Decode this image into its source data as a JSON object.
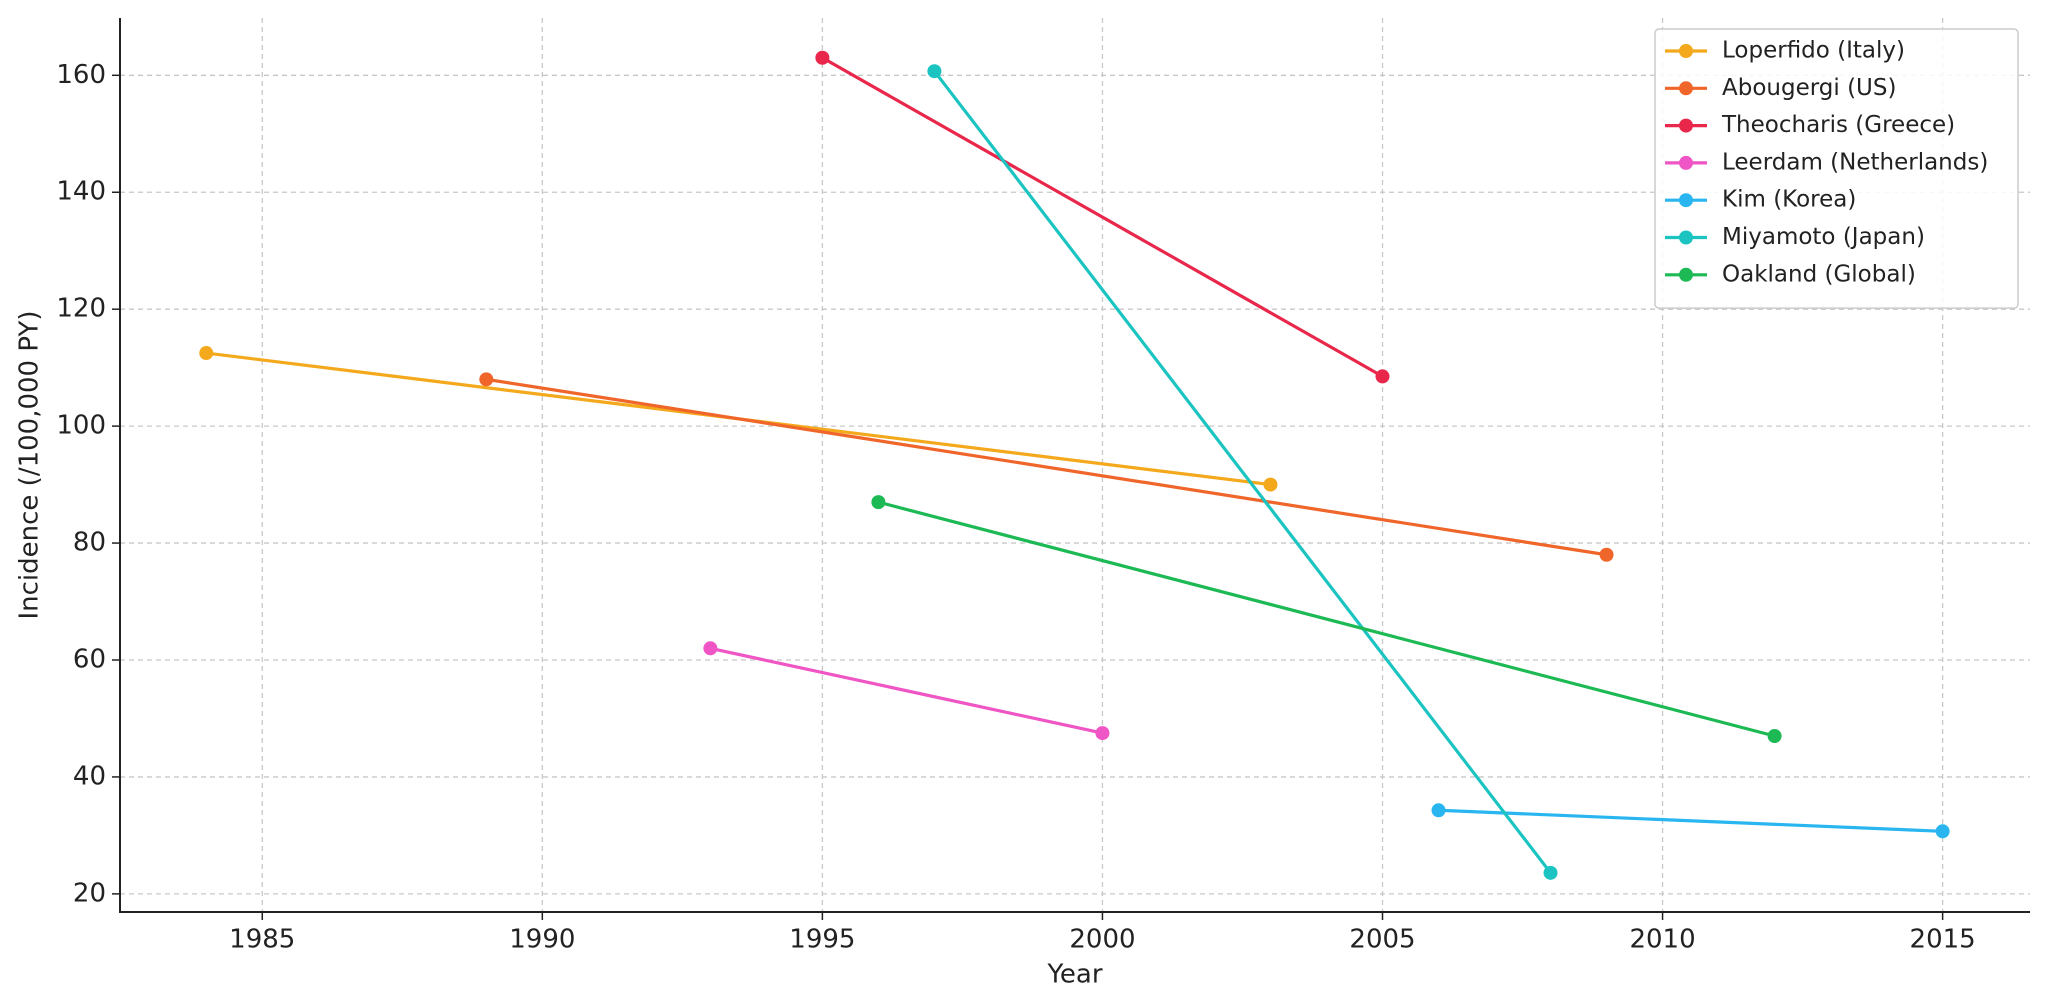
{
  "chart_data": {
    "type": "line",
    "x_label": "Year",
    "y_label": "Incidence (/100,000 PY)",
    "xlim": [
      1982.46,
      2016.56
    ],
    "xticks": [
      1985,
      1990,
      1995,
      2000,
      2005,
      2010,
      2015
    ],
    "ylim": [
      16.9,
      169.8
    ],
    "yticks": [
      20,
      40,
      60,
      80,
      100,
      120,
      140,
      160
    ],
    "grid": true,
    "legend": "upper right",
    "series": [
      {
        "name": "Loperfido (Italy)",
        "color": "#f4a81c",
        "x": [
          1984,
          2003
        ],
        "values": [
          112.5,
          90
        ]
      },
      {
        "name": "Abougergi (US)",
        "color": "#f0662a",
        "x": [
          1989,
          2009
        ],
        "values": [
          108,
          78
        ]
      },
      {
        "name": "Theocharis (Greece)",
        "color": "#e8274b",
        "x": [
          1995,
          2005
        ],
        "values": [
          163,
          108.5
        ]
      },
      {
        "name": "Leerdam (Netherlands)",
        "color": "#ef55c5",
        "x": [
          1993,
          2000
        ],
        "values": [
          62,
          47.5
        ]
      },
      {
        "name": "Kim (Korea)",
        "color": "#29b6f0",
        "x": [
          2006,
          2015
        ],
        "values": [
          34.3,
          30.7
        ]
      },
      {
        "name": "Miyamoto (Japan)",
        "color": "#1bc4c0",
        "x": [
          1997,
          2008
        ],
        "values": [
          160.7,
          23.6
        ]
      },
      {
        "name": "Oakland (Global)",
        "color": "#1db954",
        "x": [
          1996,
          2012
        ],
        "values": [
          87,
          47
        ]
      }
    ]
  }
}
